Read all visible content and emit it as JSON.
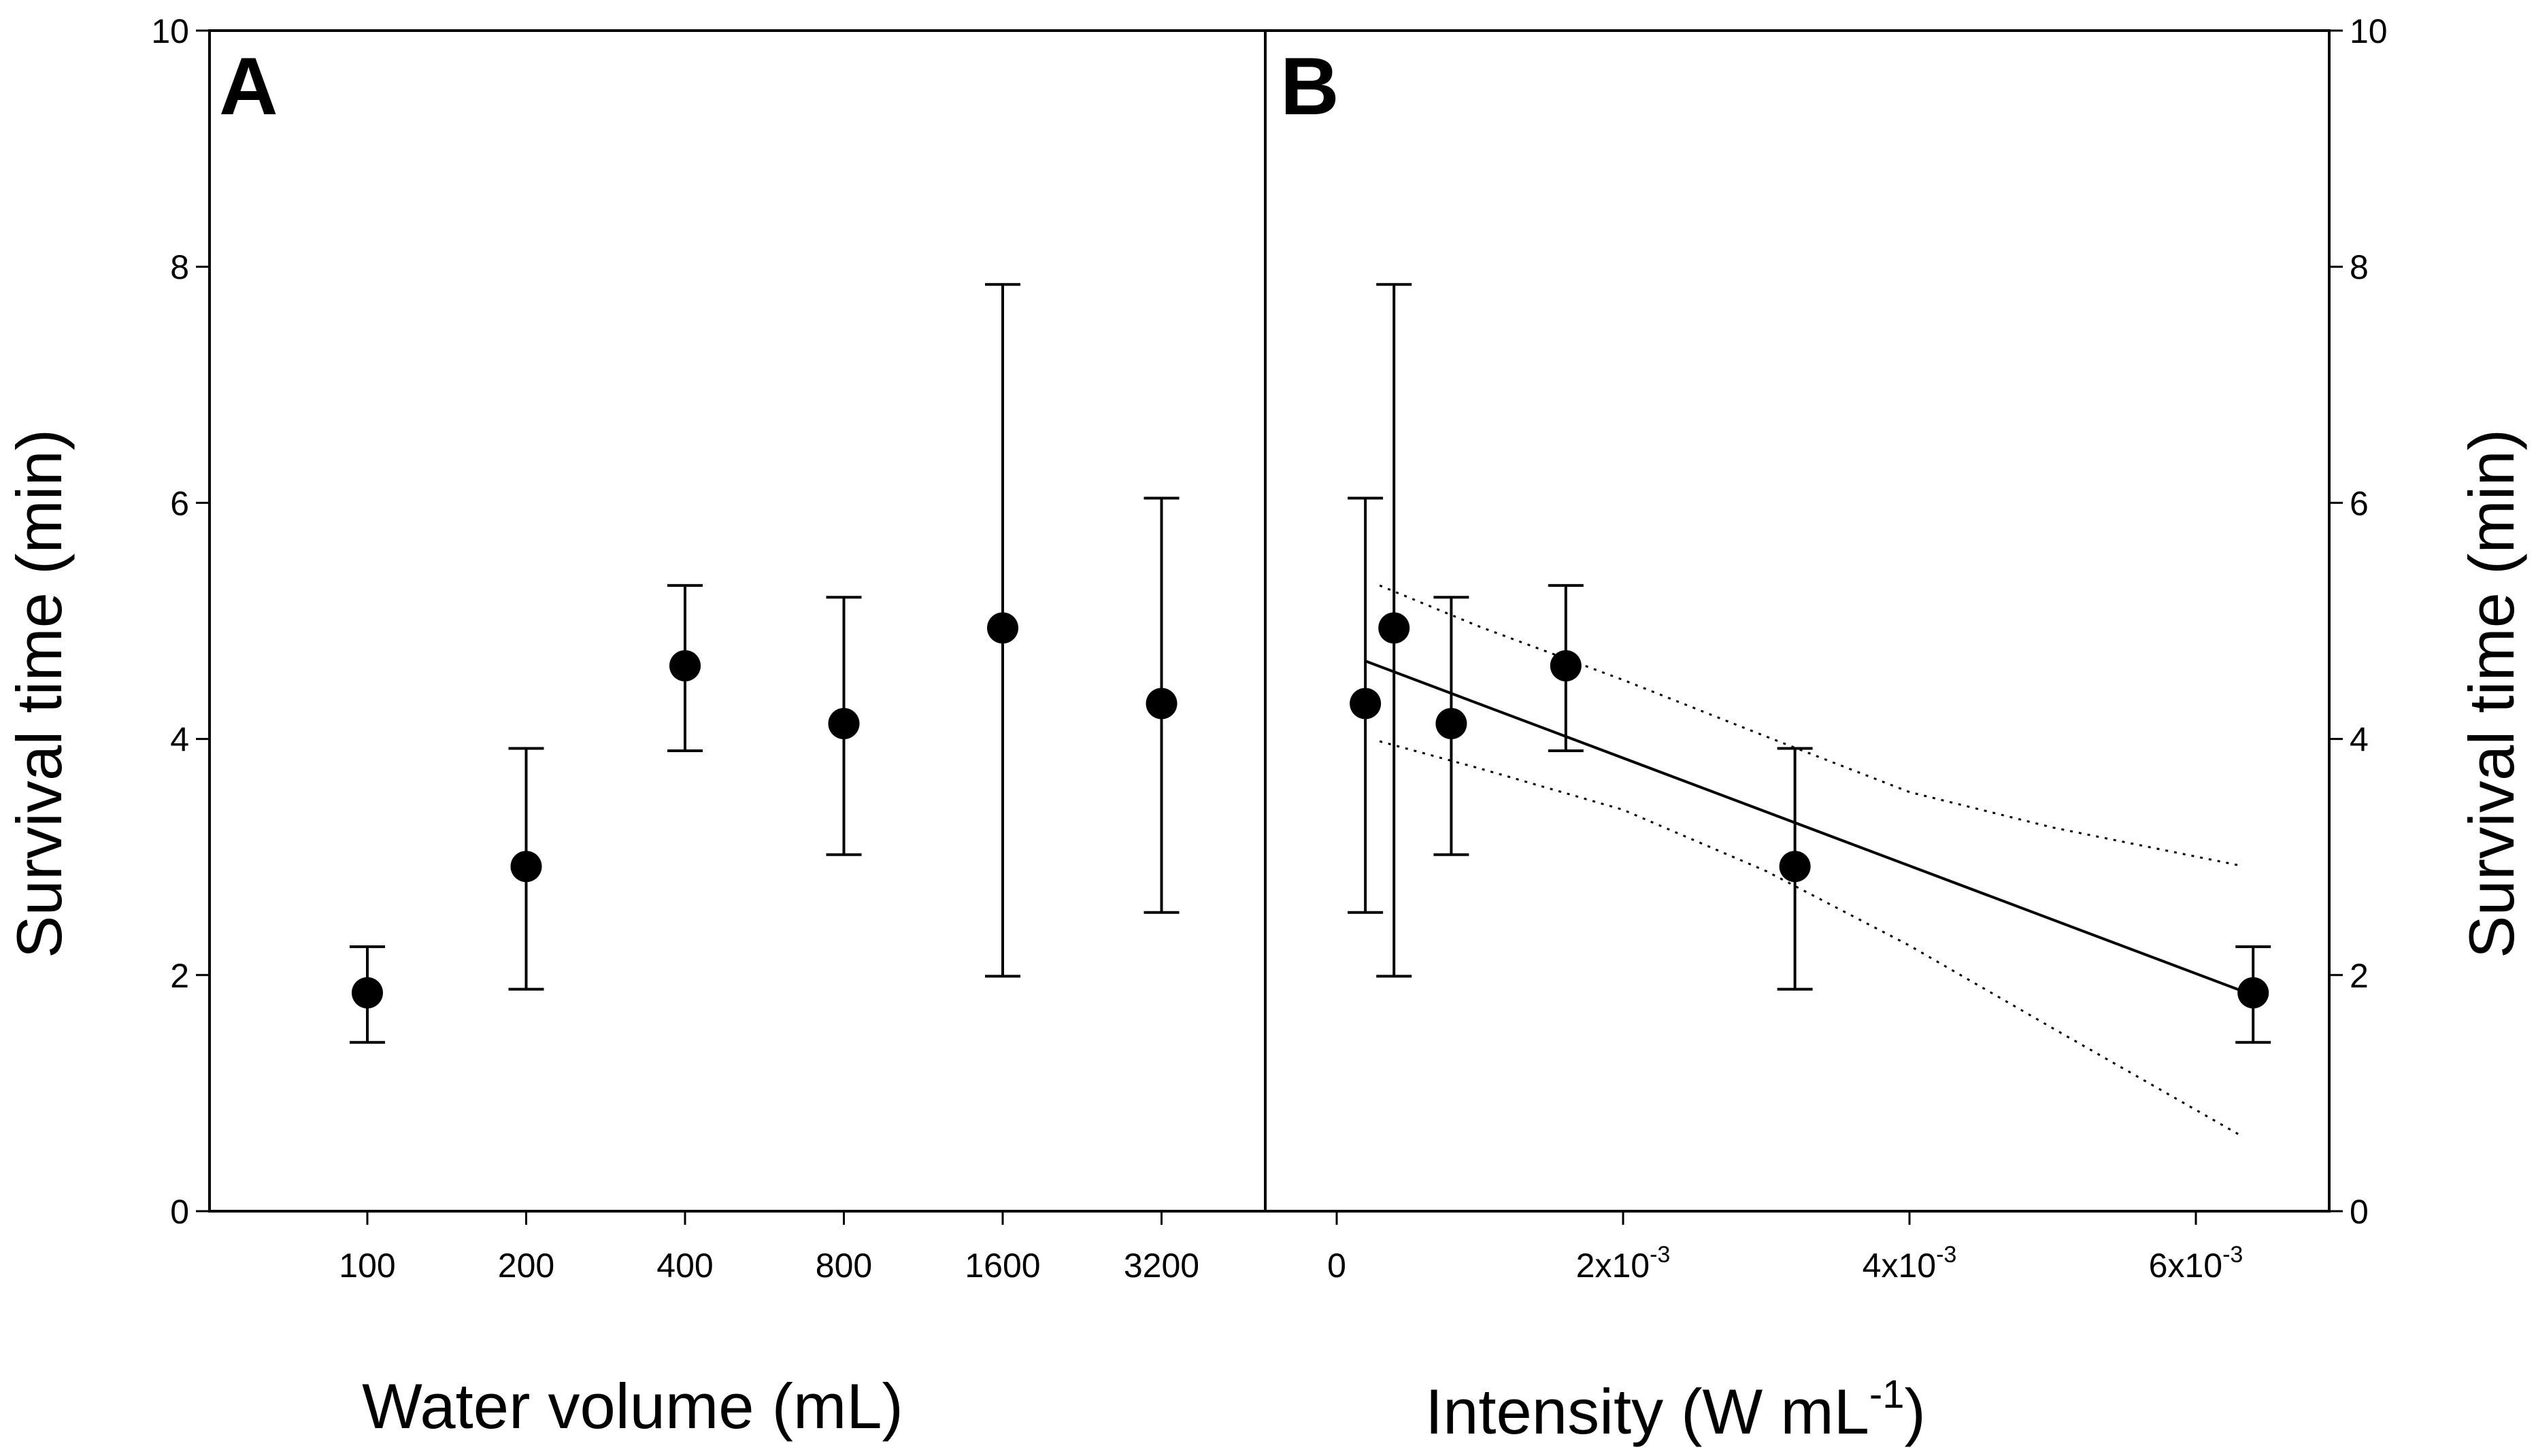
{
  "chart_data": [
    {
      "panel": "A",
      "type": "scatter",
      "panel_label": "A",
      "xlabel": "Water volume (mL)",
      "ylabel": "Survival time (min)",
      "ylim": [
        0,
        10
      ],
      "yticks": [
        "0",
        "2",
        "4",
        "6",
        "8",
        "10"
      ],
      "categories": [
        "100",
        "200",
        "400",
        "800",
        "1600",
        "3200"
      ],
      "values": [
        1.85,
        2.92,
        4.62,
        4.13,
        4.94,
        4.3
      ],
      "err_low": [
        1.43,
        1.88,
        3.9,
        3.02,
        1.99,
        2.53
      ],
      "err_high": [
        2.24,
        3.92,
        5.3,
        5.2,
        7.85,
        6.04
      ]
    },
    {
      "panel": "B",
      "type": "scatter",
      "panel_label": "B",
      "xlabel": "Intensity (W mL",
      "xlabel_superscript": "-1",
      "xlabel_suffix": ")",
      "ylabel": "Survival time (min)",
      "ylim": [
        0,
        10
      ],
      "xlim": [
        -0.0005,
        0.007
      ],
      "yticks": [
        "0",
        "2",
        "4",
        "6",
        "8",
        "10"
      ],
      "xticks": [
        {
          "value": 0,
          "base": "0",
          "exp": ""
        },
        {
          "value": 0.002,
          "base": "2x10",
          "exp": "-3"
        },
        {
          "value": 0.004,
          "base": "4x10",
          "exp": "-3"
        },
        {
          "value": 0.006,
          "base": "6x10",
          "exp": "-3"
        }
      ],
      "x": [
        0.0002,
        0.0004,
        0.0008,
        0.0016,
        0.0032,
        0.0064
      ],
      "values": [
        4.3,
        4.94,
        4.13,
        4.62,
        2.92,
        1.85
      ],
      "err_low": [
        2.53,
        1.99,
        3.02,
        3.9,
        1.88,
        1.43
      ],
      "err_high": [
        6.04,
        7.85,
        5.2,
        5.3,
        3.92,
        2.24
      ],
      "regression": {
        "x": [
          0.0002,
          0.0064
        ],
        "y": [
          4.66,
          1.83
        ]
      },
      "ci_upper": {
        "x": [
          0.0003,
          0.001,
          0.002,
          0.003,
          0.004,
          0.005,
          0.0063
        ],
        "y": [
          5.3,
          4.95,
          4.5,
          4.02,
          3.55,
          3.25,
          2.93
        ]
      },
      "ci_lower": {
        "x": [
          0.0003,
          0.001,
          0.002,
          0.003,
          0.004,
          0.005,
          0.0063
        ],
        "y": [
          3.98,
          3.75,
          3.4,
          2.88,
          2.25,
          1.55,
          0.65
        ]
      }
    }
  ]
}
